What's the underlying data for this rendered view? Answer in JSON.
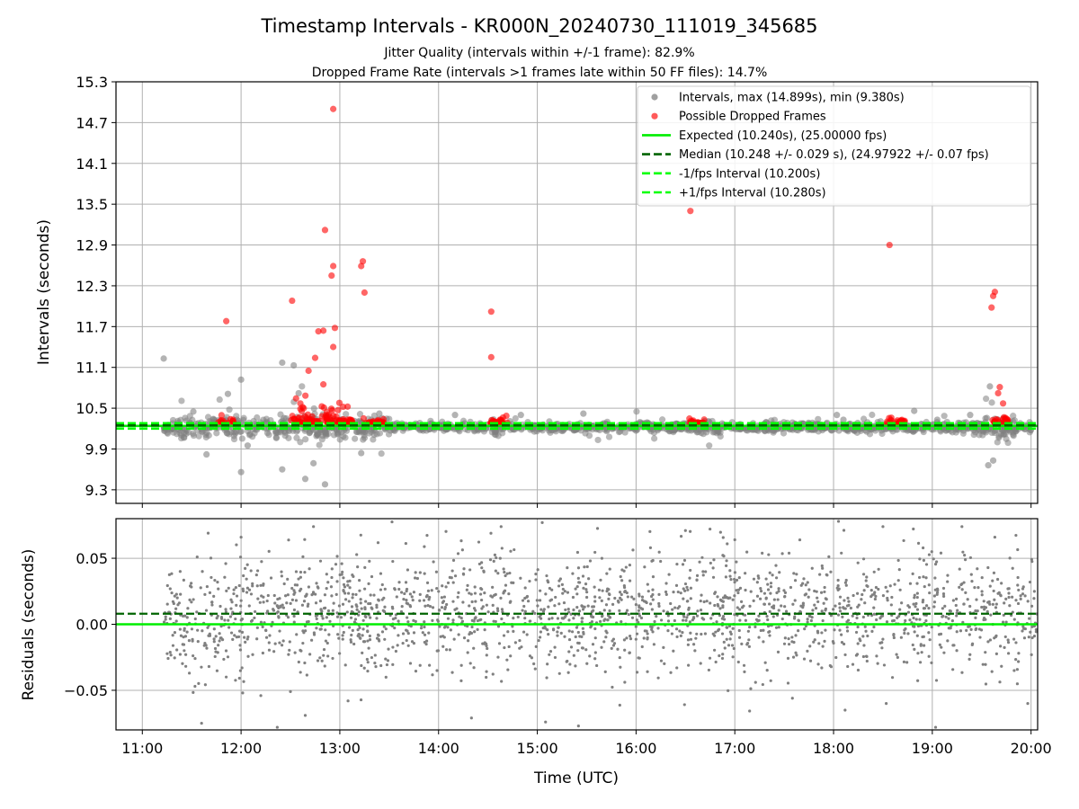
{
  "figure": {
    "title": "Timestamp Intervals - KR000N_20240730_111019_345685",
    "subtitle_1": "Jitter Quality (intervals within +/-1 frame): 82.9%",
    "subtitle_2": "Dropped Frame Rate (intervals >1 frames late within 50 FF files): 14.7%"
  },
  "colors": {
    "intervals": "#808080",
    "dropped": "#ff0000",
    "expected": "#00ee00",
    "median": "#006400",
    "fps_bound": "#00ff00"
  },
  "chart_data": [
    {
      "type": "scatter",
      "title": "",
      "xlabel": "",
      "ylabel": "Intervals (seconds)",
      "x_axis_unit": "time of day (UTC), hh:mm",
      "xlim": [
        "10:44",
        "20:04"
      ],
      "ylim": [
        9.1,
        15.3
      ],
      "yticks": [
        9.3,
        9.9,
        10.5,
        11.1,
        11.7,
        12.3,
        12.9,
        13.5,
        14.1,
        14.7,
        15.3
      ],
      "ytick_labels": [
        "9.3",
        "9.9",
        "10.5",
        "11.1",
        "11.7",
        "12.3",
        "12.9",
        "13.5",
        "14.1",
        "14.7",
        "15.3"
      ],
      "xticks": [
        "11:00",
        "12:00",
        "13:00",
        "14:00",
        "15:00",
        "16:00",
        "17:00",
        "18:00",
        "19:00",
        "20:00"
      ],
      "grid": true,
      "legend_position": "top-right",
      "legend": [
        {
          "label": "Intervals, max (14.899s), min (9.380s)",
          "kind": "marker",
          "color": "#a0a0a0"
        },
        {
          "label": "Possible Dropped Frames",
          "kind": "marker",
          "color": "#ff5a5a"
        },
        {
          "label": "Expected (10.240s), (25.00000 fps)",
          "kind": "solid",
          "color": "#00ee00"
        },
        {
          "label": "Median (10.248 +/- 0.029 s), (24.97922 +/- 0.07 fps)",
          "kind": "dashed",
          "color": "#006400"
        },
        {
          "label": "-1/fps Interval (10.200s)",
          "kind": "dashed",
          "color": "#00ff00"
        },
        {
          "label": "+1/fps Interval (10.280s)",
          "kind": "dashed",
          "color": "#00ff00"
        }
      ],
      "reference_lines": {
        "expected": 10.24,
        "median": 10.248,
        "minus_fps": 10.2,
        "plus_fps": 10.28
      },
      "series": [
        {
          "name": "Intervals, max (14.899s), min (9.380s)",
          "note": "approx. 1,600 intervals between 11:13 and 20:02, mostly within 9.9–10.6 s",
          "sampled_points": [
            [
              "11:13",
              11.23
            ],
            [
              "11:31",
              10.45
            ],
            [
              "11:39",
              9.82
            ],
            [
              "11:52",
              10.71
            ],
            [
              "12:00",
              9.56
            ],
            [
              "12:00",
              10.92
            ],
            [
              "12:04",
              9.95
            ],
            [
              "12:25",
              9.6
            ],
            [
              "12:25",
              11.17
            ],
            [
              "12:32",
              11.13
            ],
            [
              "12:35",
              10.72
            ],
            [
              "12:39",
              9.46
            ],
            [
              "12:44",
              9.69
            ],
            [
              "12:51",
              9.38
            ],
            [
              "13:13",
              9.84
            ],
            [
              "13:24",
              10.42
            ],
            [
              "14:10",
              10.4
            ],
            [
              "14:50",
              10.4
            ],
            [
              "15:28",
              10.42
            ],
            [
              "18:02",
              10.4
            ],
            [
              "18:06",
              10.33
            ],
            [
              "18:49",
              10.46
            ],
            [
              "19:03",
              10.33
            ],
            [
              "19:23",
              10.4
            ],
            [
              "19:34",
              9.66
            ],
            [
              "19:37",
              9.73
            ],
            [
              "19:35",
              10.82
            ]
          ]
        },
        {
          "name": "Possible Dropped Frames",
          "note": "dense clusters near 10.28 s around 11:50, 12:35, 13:00, 13:15, 14:35, 16:35, 18:35 and 19:40",
          "points": [
            [
              "11:51",
              11.78
            ],
            [
              "12:31",
              12.08
            ],
            [
              "12:36",
              10.57
            ],
            [
              "12:41",
              11.05
            ],
            [
              "12:45",
              11.24
            ],
            [
              "12:47",
              11.63
            ],
            [
              "12:50",
              11.64
            ],
            [
              "12:51",
              13.12
            ],
            [
              "12:55",
              12.45
            ],
            [
              "12:56",
              12.59
            ],
            [
              "12:57",
              11.68
            ],
            [
              "12:56",
              11.4
            ],
            [
              "12:56",
              14.9
            ],
            [
              "13:14",
              12.66
            ],
            [
              "13:13",
              12.59
            ],
            [
              "13:15",
              12.2
            ],
            [
              "14:32",
              11.92
            ],
            [
              "14:32",
              11.25
            ],
            [
              "16:33",
              13.4
            ],
            [
              "18:34",
              12.9
            ],
            [
              "19:36",
              11.98
            ],
            [
              "19:37",
              12.15
            ],
            [
              "19:38",
              12.21
            ],
            [
              "19:40",
              10.72
            ],
            [
              "19:41",
              10.81
            ],
            [
              "19:43",
              10.57
            ],
            [
              "12:50",
              10.85
            ],
            [
              "13:02",
              10.52
            ]
          ]
        }
      ]
    },
    {
      "type": "scatter",
      "title": "",
      "xlabel": "Time (UTC)",
      "ylabel": "Residuals (seconds)",
      "x_axis_unit": "time of day (UTC), hh:mm",
      "xlim": [
        "10:44",
        "20:04"
      ],
      "ylim": [
        -0.08,
        0.08
      ],
      "yticks": [
        -0.05,
        0.0,
        0.05
      ],
      "ytick_labels": [
        "−0.05",
        "0.00",
        "0.05"
      ],
      "xticks": [
        "11:00",
        "12:00",
        "13:00",
        "14:00",
        "15:00",
        "16:00",
        "17:00",
        "18:00",
        "19:00",
        "20:00"
      ],
      "grid": true,
      "reference_lines": {
        "expected": 0.0,
        "median": 0.008
      },
      "series": [
        {
          "name": "",
          "note": "approx. 2,000 residual points between 11:13 and 20:04, mostly within -0.04 to +0.06 s",
          "sampled_points": [
            [
              "11:23",
              0.04
            ],
            [
              "11:32",
              -0.047
            ],
            [
              "11:36",
              -0.075
            ],
            [
              "11:40",
              0.069
            ],
            [
              "12:00",
              0.066
            ],
            [
              "12:01",
              -0.052
            ],
            [
              "12:12",
              -0.054
            ],
            [
              "12:22",
              -0.078
            ],
            [
              "12:30",
              -0.051
            ],
            [
              "12:39",
              -0.069
            ],
            [
              "12:44",
              0.074
            ],
            [
              "13:05",
              -0.058
            ],
            [
              "14:20",
              -0.071
            ],
            [
              "14:38",
              0.074
            ],
            [
              "15:03",
              0.077
            ],
            [
              "15:05",
              -0.074
            ],
            [
              "15:25",
              -0.077
            ],
            [
              "16:30",
              0.071
            ],
            [
              "17:00",
              0.064
            ],
            [
              "17:35",
              -0.056
            ],
            [
              "18:03",
              0.078
            ],
            [
              "18:07",
              -0.065
            ],
            [
              "18:30",
              0.074
            ],
            [
              "18:32",
              -0.06
            ],
            [
              "19:02",
              -0.078
            ],
            [
              "19:18",
              0.074
            ],
            [
              "19:38",
              0.066
            ],
            [
              "19:58",
              -0.06
            ]
          ]
        }
      ]
    }
  ]
}
